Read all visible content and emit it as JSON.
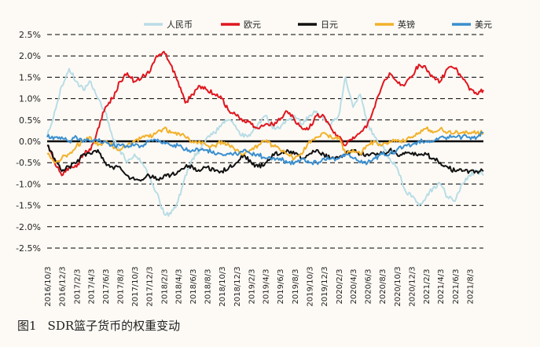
{
  "caption": {
    "number": "图1",
    "title": "SDR篮子货币的权重变动"
  },
  "chart_data": {
    "type": "line",
    "title": "",
    "xlabel": "",
    "ylabel": "",
    "ylim": [
      -2.5,
      2.5
    ],
    "y_ticks": [
      2.5,
      2.0,
      1.5,
      1.0,
      0.5,
      0.0,
      -0.5,
      -1.0,
      -1.5,
      -2.0,
      -2.5
    ],
    "y_tick_labels": [
      "2.5%",
      "2.0%",
      "1.5%",
      "1.0%",
      "0.5%",
      "0.0%",
      "-0.5%",
      "-1.0%",
      "-1.5%",
      "-2.0%",
      "-2.5%"
    ],
    "x_tick_labels": [
      "2016/10/3",
      "2016/12/3",
      "2017/2/3",
      "2017/4/3",
      "2017/6/3",
      "2017/8/3",
      "2017/10/3",
      "2017/12/3",
      "2018/2/3",
      "2018/4/3",
      "2018/6/3",
      "2018/8/3",
      "2018/10/3",
      "2018/12/3",
      "2019/2/3",
      "2019/4/3",
      "2019/6/3",
      "2019/8/3",
      "2019/10/3",
      "2019/12/3",
      "2020/2/3",
      "2020/4/3",
      "2020/6/3",
      "2020/8/3",
      "2020/10/3",
      "2020/12/3",
      "2021/2/3",
      "2021/4/3",
      "2021/6/3",
      "2021/8/3"
    ],
    "x_range": [
      "2016/10/3",
      "2021/9/30"
    ],
    "grid": "horizontal-dashed",
    "legend_position": "top",
    "x": [
      "2016/10/3",
      "2016/11/3",
      "2016/12/3",
      "2017/1/3",
      "2017/2/3",
      "2017/3/3",
      "2017/4/3",
      "2017/5/3",
      "2017/6/3",
      "2017/7/3",
      "2017/8/3",
      "2017/9/3",
      "2017/10/3",
      "2017/11/3",
      "2017/12/3",
      "2018/1/3",
      "2018/2/3",
      "2018/3/3",
      "2018/4/3",
      "2018/5/3",
      "2018/6/3",
      "2018/7/3",
      "2018/8/3",
      "2018/9/3",
      "2018/10/3",
      "2018/11/3",
      "2018/12/3",
      "2019/1/3",
      "2019/2/3",
      "2019/3/3",
      "2019/4/3",
      "2019/5/3",
      "2019/6/3",
      "2019/7/3",
      "2019/8/3",
      "2019/9/3",
      "2019/10/3",
      "2019/11/3",
      "2019/12/3",
      "2020/1/3",
      "2020/2/3",
      "2020/3/3",
      "2020/4/3",
      "2020/5/3",
      "2020/6/3",
      "2020/7/3",
      "2020/8/3",
      "2020/9/3",
      "2020/10/3",
      "2020/11/3",
      "2020/12/3",
      "2021/1/3",
      "2021/2/3",
      "2021/3/3",
      "2021/4/3",
      "2021/5/3",
      "2021/6/3",
      "2021/7/3",
      "2021/8/3",
      "2021/9/3",
      "2021/9/30"
    ],
    "series": [
      {
        "name": "人民币",
        "color": "#b9dde6",
        "values": [
          0.1,
          0.7,
          1.3,
          1.7,
          1.4,
          1.2,
          1.4,
          1.0,
          0.7,
          0.1,
          -0.2,
          -0.5,
          -0.3,
          -0.5,
          -0.8,
          -1.2,
          -1.7,
          -1.7,
          -1.4,
          -0.8,
          -0.4,
          -0.2,
          0.1,
          0.2,
          0.4,
          0.5,
          0.3,
          0.1,
          0.2,
          0.4,
          0.6,
          0.3,
          0.3,
          0.5,
          0.6,
          0.4,
          0.6,
          0.7,
          0.5,
          0.4,
          0.6,
          1.5,
          0.8,
          1.1,
          0.4,
          0.1,
          -0.1,
          -0.4,
          -0.6,
          -1.1,
          -1.3,
          -1.5,
          -1.3,
          -1.1,
          -1.0,
          -1.3,
          -1.4,
          -1.0,
          -0.8,
          -0.7,
          -0.8
        ]
      },
      {
        "name": "欧元",
        "color": "#e0161e",
        "values": [
          -0.1,
          -0.5,
          -0.8,
          -0.6,
          -0.6,
          -0.3,
          -0.2,
          0.3,
          0.8,
          1.0,
          1.4,
          1.6,
          1.4,
          1.5,
          1.6,
          2.0,
          2.1,
          1.8,
          1.4,
          0.9,
          1.1,
          1.3,
          1.2,
          1.1,
          1.0,
          0.7,
          0.6,
          0.5,
          0.4,
          0.3,
          0.4,
          0.4,
          0.5,
          0.7,
          0.5,
          0.3,
          0.3,
          0.6,
          0.6,
          0.3,
          0.1,
          -0.1,
          0.1,
          0.2,
          0.4,
          0.8,
          1.3,
          1.6,
          1.4,
          1.3,
          1.5,
          1.8,
          1.7,
          1.5,
          1.4,
          1.7,
          1.7,
          1.5,
          1.2,
          1.1,
          1.2
        ]
      },
      {
        "name": "日元",
        "color": "#111111",
        "values": [
          -0.1,
          -0.4,
          -0.7,
          -0.6,
          -0.5,
          -0.3,
          -0.3,
          -0.2,
          -0.5,
          -0.6,
          -0.6,
          -0.8,
          -0.9,
          -0.9,
          -0.8,
          -0.9,
          -0.8,
          -0.8,
          -0.7,
          -0.6,
          -0.6,
          -0.7,
          -0.6,
          -0.7,
          -0.7,
          -0.6,
          -0.5,
          -0.3,
          -0.5,
          -0.6,
          -0.5,
          -0.3,
          -0.3,
          -0.2,
          -0.3,
          -0.4,
          -0.3,
          -0.2,
          -0.3,
          -0.4,
          -0.4,
          -0.3,
          -0.2,
          -0.3,
          -0.3,
          -0.3,
          -0.3,
          -0.2,
          -0.3,
          -0.3,
          -0.3,
          -0.3,
          -0.3,
          -0.4,
          -0.5,
          -0.6,
          -0.7,
          -0.7,
          -0.7,
          -0.7,
          -0.7
        ]
      },
      {
        "name": "英镑",
        "color": "#f2b12b",
        "values": [
          -0.3,
          -0.5,
          -0.4,
          -0.3,
          -0.1,
          0.0,
          0.1,
          -0.1,
          0.0,
          -0.1,
          -0.2,
          -0.1,
          0.0,
          0.1,
          0.1,
          0.2,
          0.3,
          0.2,
          0.2,
          0.1,
          0.0,
          0.0,
          -0.1,
          -0.1,
          0.0,
          -0.1,
          -0.2,
          -0.3,
          -0.2,
          -0.1,
          0.0,
          -0.1,
          -0.2,
          -0.3,
          -0.4,
          -0.3,
          0.0,
          0.1,
          0.2,
          0.1,
          0.1,
          -0.3,
          -0.2,
          -0.3,
          -0.1,
          0.0,
          -0.1,
          0.0,
          0.0,
          0.0,
          0.1,
          0.2,
          0.3,
          0.2,
          0.3,
          0.2,
          0.2,
          0.2,
          0.2,
          0.2,
          0.2
        ]
      },
      {
        "name": "美元",
        "color": "#3a8fcf",
        "values": [
          0.1,
          0.1,
          0.1,
          0.0,
          0.1,
          0.0,
          0.0,
          0.0,
          0.0,
          -0.1,
          -0.1,
          -0.1,
          -0.1,
          -0.1,
          0.0,
          0.0,
          0.0,
          -0.1,
          -0.1,
          -0.2,
          -0.2,
          -0.2,
          -0.2,
          -0.3,
          -0.3,
          -0.3,
          -0.3,
          -0.2,
          -0.3,
          -0.3,
          -0.4,
          -0.4,
          -0.4,
          -0.5,
          -0.5,
          -0.4,
          -0.5,
          -0.5,
          -0.4,
          -0.4,
          -0.4,
          -0.3,
          -0.4,
          -0.5,
          -0.5,
          -0.4,
          -0.3,
          -0.3,
          -0.2,
          -0.1,
          -0.1,
          0.0,
          0.0,
          0.0,
          0.1,
          0.1,
          0.1,
          0.1,
          0.1,
          0.1,
          0.2
        ]
      }
    ]
  }
}
